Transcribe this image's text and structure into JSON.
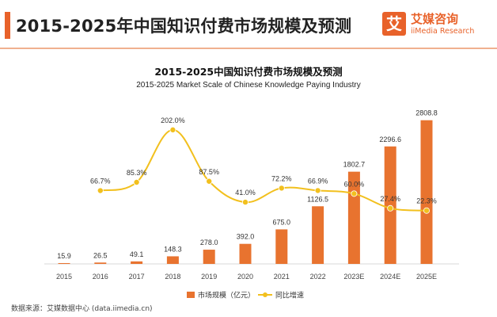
{
  "header": {
    "title": "2015-2025年中国知识付费市场规模及预测",
    "accent_color": "#e8622a"
  },
  "logo": {
    "icon_char": "艾",
    "name_cn": "艾媒咨询",
    "name_en": "iiMedia Research"
  },
  "source": "数据来源：艾媒数据中心 (data.iimedia.cn)",
  "chart_data": {
    "type": "bar",
    "title": "2015-2025中国知识付费市场规模及预测",
    "subtitle": "2015-2025 Market Scale of Chinese Knowledge Paying Industry",
    "categories": [
      "2015",
      "2016",
      "2017",
      "2018",
      "2019",
      "2020",
      "2021",
      "2022",
      "2023E",
      "2024E",
      "2025E"
    ],
    "series": [
      {
        "name": "市场规模（亿元）",
        "type": "bar",
        "color": "#e8732f",
        "values": [
          15.9,
          26.5,
          49.1,
          148.3,
          278.0,
          392.0,
          675.0,
          1126.5,
          1802.7,
          2296.6,
          2808.8
        ],
        "labels": [
          "15.9",
          "26.5",
          "49.1",
          "148.3",
          "278.0",
          "392.0",
          "675.0",
          "1126.5",
          "1802.7",
          "2296.6",
          "2808.8"
        ]
      },
      {
        "name": "同比增速",
        "type": "line",
        "color": "#f2c01e",
        "values": [
          null,
          66.7,
          85.3,
          202.0,
          87.5,
          41.0,
          72.2,
          66.9,
          60.0,
          27.4,
          22.3
        ],
        "labels": [
          "",
          "66.7%",
          "85.3%",
          "202.0%",
          "87.5%",
          "41.0%",
          "72.2%",
          "66.9%",
          "60.0%",
          "27.4%",
          "22.3%"
        ]
      }
    ],
    "bar_ylim": [
      0,
      3300
    ],
    "line_ylim": [
      -100,
      230
    ],
    "legend": [
      "市场规模（亿元）",
      "同比增速"
    ],
    "legend_position": "bottom-center",
    "grid": false
  }
}
